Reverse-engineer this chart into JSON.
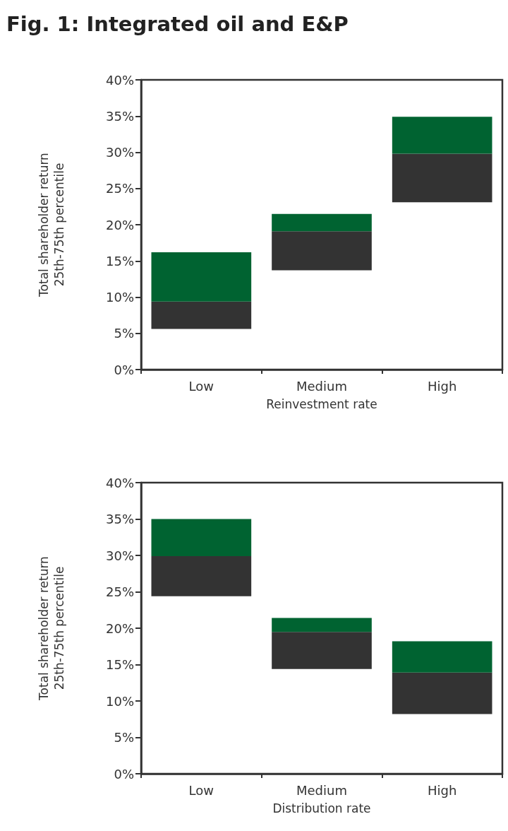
{
  "chart_data": [
    {
      "type": "bar",
      "title": "Fig. 1: Integrated oil and E&P",
      "xlabel": "Reinvestment rate",
      "ylabel": "Total shareholder return\n25th-75th percentile",
      "categories": [
        "Low",
        "Medium",
        "High"
      ],
      "series": [
        {
          "color": "#333333",
          "base": [
            5.6,
            13.7,
            23.1
          ],
          "values": [
            3.8,
            5.4,
            6.7
          ]
        },
        {
          "color": "#006331",
          "base": [
            9.4,
            19.1,
            29.8
          ],
          "values": [
            6.8,
            2.4,
            5.1
          ]
        }
      ],
      "ylim": [
        0,
        40
      ],
      "yticks": [
        {
          "value": 0,
          "label": "0%"
        },
        {
          "value": 5,
          "label": "5%"
        },
        {
          "value": 10,
          "label": "10%"
        },
        {
          "value": 15,
          "label": "15%"
        },
        {
          "value": 20,
          "label": "20%"
        },
        {
          "value": 25,
          "label": "25%"
        },
        {
          "value": 30,
          "label": "30%"
        },
        {
          "value": 35,
          "label": "35%"
        },
        {
          "value": 40,
          "label": "40%"
        }
      ],
      "grid": false
    },
    {
      "type": "bar",
      "xlabel": "Distribution rate",
      "ylabel": "Total shareholder return\n25th-75th percentile",
      "categories": [
        "Low",
        "Medium",
        "High"
      ],
      "series": [
        {
          "color": "#333333",
          "base": [
            24.4,
            14.4,
            8.2
          ],
          "values": [
            5.5,
            5.1,
            5.7
          ]
        },
        {
          "color": "#006331",
          "base": [
            29.9,
            19.5,
            13.9
          ],
          "values": [
            5.1,
            1.9,
            4.3
          ]
        }
      ],
      "ylim": [
        0,
        40
      ],
      "yticks": [
        {
          "value": 0,
          "label": "0%"
        },
        {
          "value": 5,
          "label": "5%"
        },
        {
          "value": 10,
          "label": "10%"
        },
        {
          "value": 15,
          "label": "15%"
        },
        {
          "value": 20,
          "label": "20%"
        },
        {
          "value": 25,
          "label": "25%"
        },
        {
          "value": 30,
          "label": "30%"
        },
        {
          "value": 35,
          "label": "35%"
        },
        {
          "value": 40,
          "label": "40%"
        }
      ],
      "grid": false
    }
  ]
}
